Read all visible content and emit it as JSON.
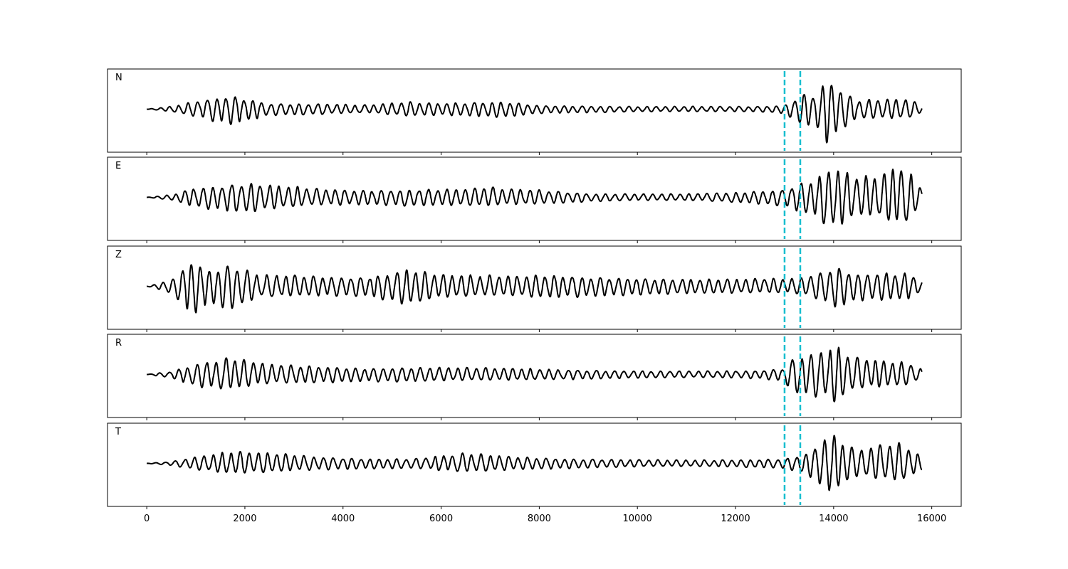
{
  "chart_data": {
    "type": "line",
    "xlim": [
      -800,
      16600
    ],
    "x_ticks": [
      0,
      2000,
      4000,
      6000,
      8000,
      10000,
      12000,
      14000,
      16000
    ],
    "x_tick_labels": [
      "0",
      "2000",
      "4000",
      "6000",
      "8000",
      "10000",
      "12000",
      "14000",
      "16000"
    ],
    "x_range": [
      0,
      15800
    ],
    "marker_lines": [
      13000,
      13320
    ],
    "marker_color": "#17becf",
    "trace_color": "#000000",
    "ylim": [
      -1,
      1
    ],
    "grid": false,
    "series": [
      {
        "name": "N",
        "x": [
          0,
          500,
          1000,
          1700,
          2500,
          3500,
          4500,
          5300,
          6000,
          7300,
          8000,
          9000,
          10000,
          11000,
          12500,
          13000,
          13100,
          13320,
          13400,
          13600,
          13850,
          13950,
          14200,
          14500,
          15000,
          15500,
          15800
        ],
        "amplitude": [
          0.0,
          0.08,
          0.24,
          0.45,
          0.18,
          0.16,
          0.12,
          0.22,
          0.18,
          0.24,
          0.12,
          0.1,
          0.08,
          0.08,
          0.08,
          0.12,
          0.26,
          0.4,
          0.5,
          0.45,
          0.95,
          0.92,
          0.55,
          0.28,
          0.3,
          0.3,
          0.12
        ]
      },
      {
        "name": "E",
        "x": [
          0,
          500,
          1000,
          2000,
          2700,
          3500,
          4500,
          5500,
          6500,
          7000,
          7200,
          8000,
          9000,
          10000,
          11000,
          12000,
          13000,
          13320,
          13600,
          13900,
          14000,
          14500,
          15000,
          15300,
          15500,
          15800
        ],
        "amplitude": [
          0.0,
          0.08,
          0.3,
          0.45,
          0.35,
          0.25,
          0.22,
          0.25,
          0.25,
          0.3,
          0.25,
          0.22,
          0.12,
          0.1,
          0.1,
          0.15,
          0.25,
          0.45,
          0.55,
          0.9,
          0.95,
          0.6,
          0.65,
          0.95,
          0.8,
          0.25
        ]
      },
      {
        "name": "Z",
        "x": [
          0,
          400,
          800,
          950,
          1200,
          1700,
          2300,
          3500,
          4500,
          5000,
          5300,
          6000,
          7500,
          8000,
          9000,
          10000,
          11000,
          12000,
          13000,
          13320,
          13800,
          14000,
          14500,
          15000,
          15500,
          15800
        ],
        "amplitude": [
          0.0,
          0.15,
          0.6,
          1.0,
          0.5,
          0.7,
          0.35,
          0.3,
          0.28,
          0.45,
          0.55,
          0.35,
          0.3,
          0.35,
          0.3,
          0.25,
          0.22,
          0.22,
          0.22,
          0.25,
          0.45,
          0.65,
          0.4,
          0.42,
          0.4,
          0.18
        ]
      },
      {
        "name": "R",
        "x": [
          0,
          500,
          1000,
          1700,
          2500,
          3500,
          4500,
          5500,
          6500,
          7500,
          8500,
          9500,
          10500,
          11500,
          12500,
          13000,
          13100,
          13320,
          13500,
          13900,
          14000,
          14400,
          15000,
          15500,
          15800
        ],
        "amplitude": [
          0.0,
          0.1,
          0.35,
          0.5,
          0.3,
          0.25,
          0.2,
          0.22,
          0.2,
          0.18,
          0.15,
          0.12,
          0.1,
          0.1,
          0.12,
          0.2,
          0.45,
          0.6,
          0.65,
          0.75,
          0.92,
          0.5,
          0.4,
          0.35,
          0.15
        ]
      },
      {
        "name": "T",
        "x": [
          0,
          500,
          1000,
          1700,
          2500,
          3500,
          4500,
          5500,
          6500,
          7500,
          8500,
          9500,
          10500,
          11500,
          12500,
          13000,
          13320,
          13600,
          13800,
          14000,
          14500,
          15000,
          15300,
          15500,
          15800
        ],
        "amplitude": [
          0.0,
          0.06,
          0.2,
          0.35,
          0.3,
          0.2,
          0.15,
          0.15,
          0.3,
          0.2,
          0.15,
          0.12,
          0.1,
          0.1,
          0.12,
          0.15,
          0.25,
          0.45,
          0.9,
          0.85,
          0.4,
          0.55,
          0.6,
          0.5,
          0.2
        ]
      }
    ]
  }
}
